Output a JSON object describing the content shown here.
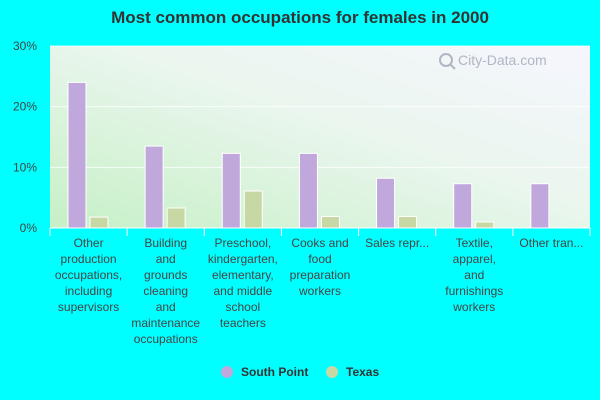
{
  "chart_data": {
    "type": "bar",
    "title": "Most common occupations for females in 2000",
    "categories": [
      [
        "Other",
        "production",
        "occupations,",
        "including",
        "supervisors"
      ],
      [
        "Building",
        "and",
        "grounds",
        "cleaning",
        "and",
        "maintenance",
        "occupations"
      ],
      [
        "Preschool,",
        "kindergarten,",
        "elementary,",
        "and middle",
        "school",
        "teachers"
      ],
      [
        "Cooks and",
        "food",
        "preparation",
        "workers"
      ],
      [
        "Sales repr..."
      ],
      [
        "Textile,",
        "apparel,",
        "and",
        "furnishings",
        "workers"
      ],
      [
        "Other tran..."
      ]
    ],
    "series": [
      {
        "name": "South Point",
        "color": "#c0a8dc",
        "values": [
          24.0,
          13.5,
          12.3,
          12.3,
          8.2,
          7.3,
          7.3
        ]
      },
      {
        "name": "Texas",
        "color": "#c8d8a4",
        "values": [
          1.8,
          3.3,
          6.1,
          1.9,
          1.9,
          1.0,
          0
        ]
      }
    ],
    "y_ticks": [
      "0%",
      "10%",
      "20%",
      "30%"
    ],
    "ylim": [
      0,
      30
    ],
    "grid": true,
    "legend_position": "bottom-center",
    "watermark": "City-Data.com"
  }
}
